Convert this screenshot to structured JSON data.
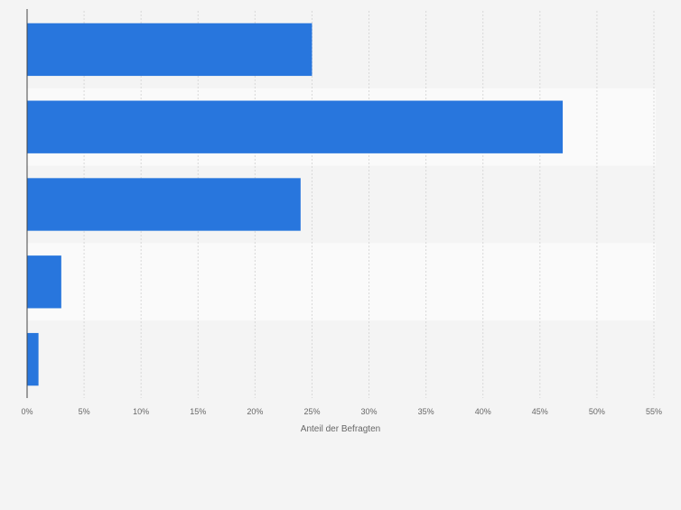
{
  "chart_data": {
    "type": "bar",
    "orientation": "horizontal",
    "categories": [
      "",
      "",
      "",
      "",
      ""
    ],
    "values": [
      25,
      47,
      24,
      3,
      1
    ],
    "xlabel": "Anteil der Befragten",
    "ylabel": "",
    "xlim": [
      0,
      55
    ],
    "xticks": [
      0,
      5,
      10,
      15,
      20,
      25,
      30,
      35,
      40,
      45,
      50,
      55
    ],
    "xtick_labels": [
      "0%",
      "5%",
      "10%",
      "15%",
      "20%",
      "25%",
      "30%",
      "35%",
      "40%",
      "45%",
      "50%",
      "55%"
    ],
    "grid": true,
    "bar_color": "#2876dd",
    "band_colors": [
      "#f4f4f4",
      "#fafafa"
    ]
  }
}
